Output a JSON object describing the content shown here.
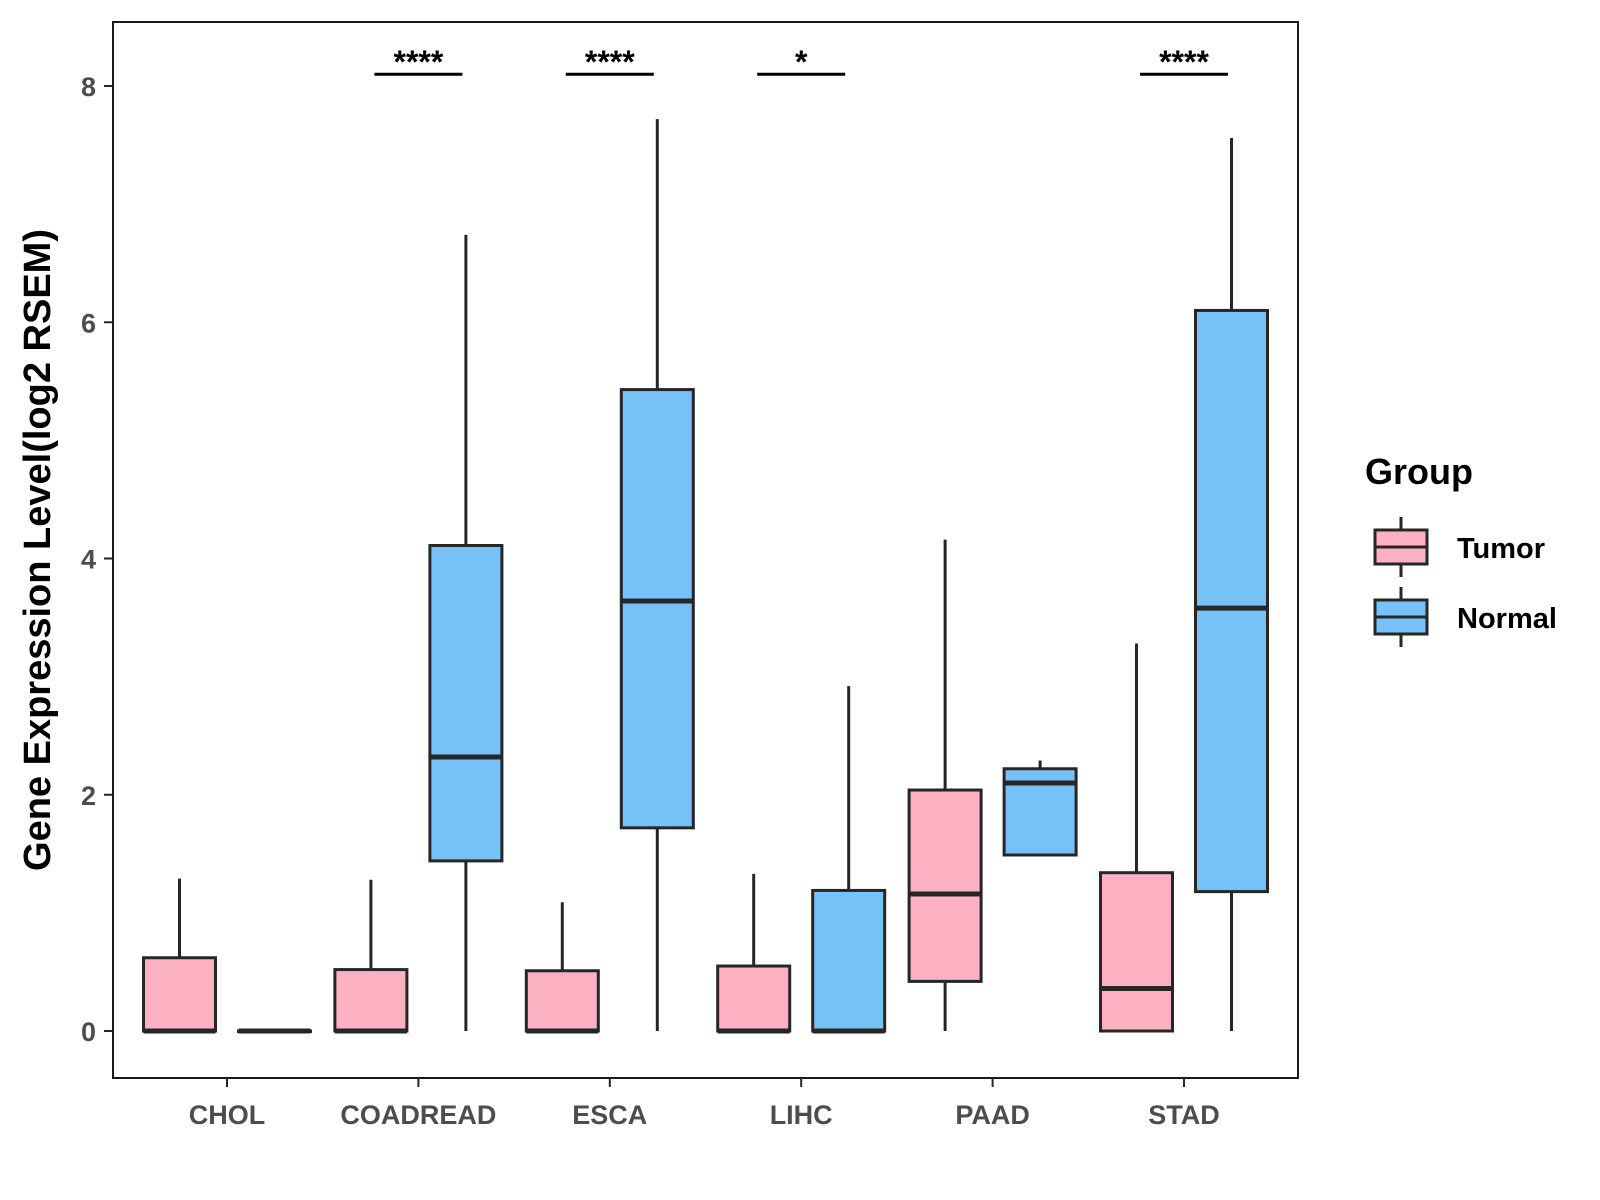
{
  "chart_data": {
    "type": "boxplot",
    "ylabel": "Gene Expression Level(log2 RSEM)",
    "xlabel": "",
    "ylim": [
      -0.4,
      8.5
    ],
    "yticks": [
      0,
      2,
      4,
      6,
      8
    ],
    "categories": [
      "CHOL",
      "COADREAD",
      "ESCA",
      "LIHC",
      "PAAD",
      "STAD"
    ],
    "legend": {
      "title": "Group",
      "position": "right",
      "items": [
        {
          "name": "Tumor",
          "color": "#FBB1C2"
        },
        {
          "name": "Normal",
          "color": "#76C1F8"
        }
      ]
    },
    "series": [
      {
        "name": "Tumor",
        "color": "#FBB1C2",
        "boxes": [
          {
            "category": "CHOL",
            "min": 0,
            "q1": 0,
            "median": 0,
            "q3": 0.62,
            "max": 1.29
          },
          {
            "category": "COADREAD",
            "min": 0,
            "q1": 0,
            "median": 0,
            "q3": 0.52,
            "max": 1.28
          },
          {
            "category": "ESCA",
            "min": 0,
            "q1": 0,
            "median": 0,
            "q3": 0.51,
            "max": 1.09
          },
          {
            "category": "LIHC",
            "min": 0,
            "q1": 0,
            "median": 0,
            "q3": 0.55,
            "max": 1.33
          },
          {
            "category": "PAAD",
            "min": 0,
            "q1": 0.42,
            "median": 1.16,
            "q3": 2.04,
            "max": 4.16
          },
          {
            "category": "STAD",
            "min": 0,
            "q1": 0,
            "median": 0.36,
            "q3": 1.34,
            "max": 3.28
          }
        ]
      },
      {
        "name": "Normal",
        "color": "#76C1F8",
        "boxes": [
          {
            "category": "CHOL",
            "min": 0,
            "q1": 0,
            "median": 0,
            "q3": 0,
            "max": 0
          },
          {
            "category": "COADREAD",
            "min": 0,
            "q1": 1.44,
            "median": 2.32,
            "q3": 4.11,
            "max": 6.74
          },
          {
            "category": "ESCA",
            "min": 0,
            "q1": 1.72,
            "median": 3.64,
            "q3": 5.43,
            "max": 7.72
          },
          {
            "category": "LIHC",
            "min": 0,
            "q1": 0,
            "median": 0,
            "q3": 1.19,
            "max": 2.92
          },
          {
            "category": "PAAD",
            "min": 1.49,
            "q1": 1.49,
            "median": 2.1,
            "q3": 2.22,
            "max": 2.29
          },
          {
            "category": "STAD",
            "min": 0,
            "q1": 1.18,
            "median": 3.58,
            "q3": 6.1,
            "max": 7.56
          }
        ]
      }
    ],
    "annotations": [
      {
        "category": "COADREAD",
        "label": "****",
        "y": 8.1
      },
      {
        "category": "ESCA",
        "label": "****",
        "y": 8.1
      },
      {
        "category": "LIHC",
        "label": "*",
        "y": 8.1
      },
      {
        "category": "STAD",
        "label": "****",
        "y": 8.1
      }
    ]
  }
}
